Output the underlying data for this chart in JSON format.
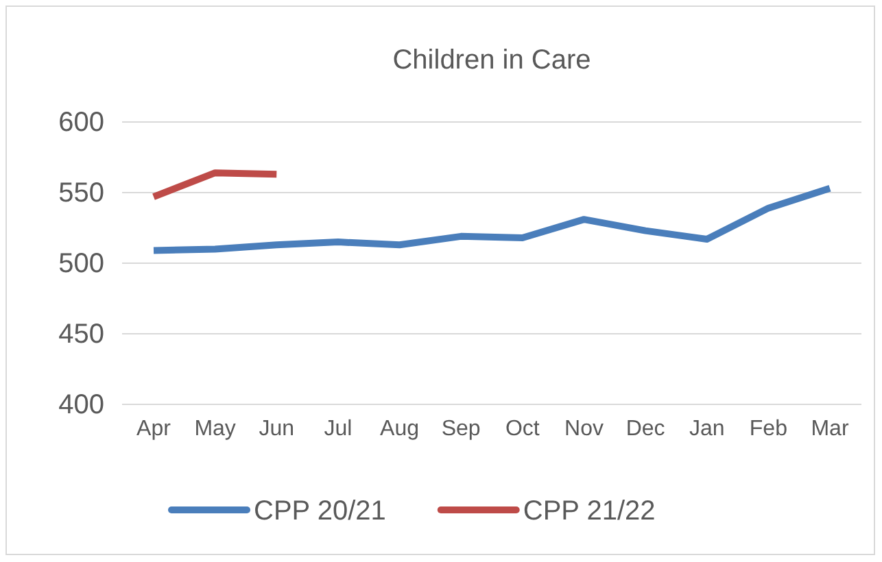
{
  "chart_data": {
    "type": "line",
    "title": "Children in Care",
    "categories": [
      "Apr",
      "May",
      "Jun",
      "Jul",
      "Aug",
      "Sep",
      "Oct",
      "Nov",
      "Dec",
      "Jan",
      "Feb",
      "Mar"
    ],
    "series": [
      {
        "name": "CPP 20/21",
        "color": "#4a7ebb",
        "values": [
          509,
          510,
          513,
          515,
          513,
          519,
          518,
          531,
          523,
          517,
          539,
          553
        ]
      },
      {
        "name": "CPP 21/22",
        "color": "#be4b48",
        "values": [
          547,
          564,
          563,
          null,
          null,
          null,
          null,
          null,
          null,
          null,
          null,
          null
        ]
      }
    ],
    "ylim": [
      400,
      600
    ],
    "yticks": [
      400,
      450,
      500,
      550,
      600
    ],
    "grid": "y",
    "legend": "bottom",
    "marker": "none",
    "line_style": "solid"
  }
}
